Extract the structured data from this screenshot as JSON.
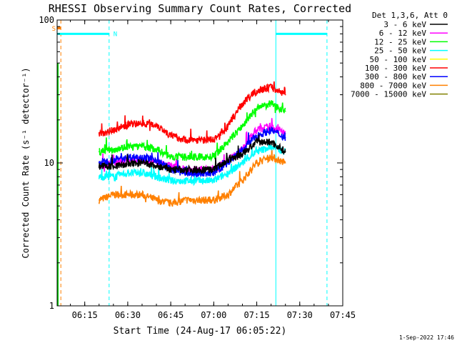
{
  "chart_data": {
    "type": "line",
    "title": "RHESSI Observing Summary Count Rates, Corrected",
    "xlabel": "Start Time (24-Aug-17 06:05:22)",
    "ylabel": "Corrected Count Rate (s⁻¹ detector⁻¹)",
    "y_scale": "log",
    "ylim": [
      1,
      100
    ],
    "y_ticks": [
      {
        "value": 1,
        "label": "1"
      },
      {
        "value": 10,
        "label": "10"
      },
      {
        "value": 100,
        "label": "100"
      }
    ],
    "xlim": [
      "06:05:22",
      "07:45:00"
    ],
    "x_ticks": [
      "06:15",
      "06:30",
      "06:45",
      "07:00",
      "07:15",
      "07:30",
      "07:45"
    ],
    "legend_title": "Det 1,3,6, Att 0",
    "legend_position": "top-right, outside plot",
    "timestamp": "1-Sep-2022 17:46",
    "series": [
      {
        "name": "3 - 6 keV",
        "color": "#000000",
        "x": [
          "06:20",
          "06:25",
          "06:30",
          "06:35",
          "06:40",
          "06:45",
          "06:50",
          "06:55",
          "07:00",
          "07:05",
          "07:10",
          "07:15",
          "07:20",
          "07:25"
        ],
        "values": [
          9.5,
          9.5,
          9.8,
          10.0,
          9.5,
          9.0,
          9.0,
          9.0,
          9.0,
          10.5,
          11.5,
          14.0,
          14.0,
          12.0
        ]
      },
      {
        "name": "6 - 12 keV",
        "color": "#ff00ff",
        "x": [
          "06:20",
          "06:25",
          "06:30",
          "06:35",
          "06:40",
          "06:45",
          "06:50",
          "06:55",
          "07:00",
          "07:05",
          "07:10",
          "07:15",
          "07:20",
          "07:25"
        ],
        "values": [
          9.5,
          10.0,
          10.5,
          10.5,
          10.0,
          9.5,
          9.0,
          9.0,
          9.0,
          10.5,
          12.5,
          17.0,
          18.0,
          16.0
        ]
      },
      {
        "name": "12 - 25 keV",
        "color": "#00ff00",
        "x": [
          "06:20",
          "06:25",
          "06:30",
          "06:35",
          "06:40",
          "06:45",
          "06:50",
          "06:55",
          "07:00",
          "07:05",
          "07:10",
          "07:15",
          "07:20",
          "07:25"
        ],
        "values": [
          12.0,
          12.5,
          13.0,
          13.0,
          12.5,
          11.0,
          11.0,
          11.0,
          11.0,
          14.0,
          18.0,
          24.0,
          26.0,
          23.0
        ]
      },
      {
        "name": "25 - 50 keV",
        "color": "#00ffff",
        "x": [
          "06:20",
          "06:25",
          "06:30",
          "06:35",
          "06:40",
          "06:45",
          "06:50",
          "06:55",
          "07:00",
          "07:05",
          "07:10",
          "07:15",
          "07:20",
          "07:25"
        ],
        "values": [
          8.0,
          8.0,
          8.5,
          8.5,
          8.0,
          7.5,
          7.5,
          7.5,
          7.5,
          8.5,
          10.0,
          12.0,
          13.0,
          12.0
        ]
      },
      {
        "name": "50 - 100 keV",
        "color": "#ffff00",
        "x": [],
        "values": []
      },
      {
        "name": "100 - 300 keV",
        "color": "#ff0000",
        "x": [
          "06:20",
          "06:25",
          "06:30",
          "06:35",
          "06:40",
          "06:45",
          "06:50",
          "06:55",
          "07:00",
          "07:05",
          "07:10",
          "07:15",
          "07:20",
          "07:25"
        ],
        "values": [
          16.0,
          17.0,
          18.5,
          19.0,
          18.5,
          15.5,
          14.5,
          14.5,
          14.5,
          18.0,
          26.0,
          32.0,
          34.0,
          30.0
        ]
      },
      {
        "name": "300 - 800 keV",
        "color": "#0000ff",
        "x": [
          "06:20",
          "06:25",
          "06:30",
          "06:35",
          "06:40",
          "06:45",
          "06:50",
          "06:55",
          "07:00",
          "07:05",
          "07:10",
          "07:15",
          "07:20",
          "07:25"
        ],
        "values": [
          10.0,
          10.5,
          11.0,
          11.0,
          10.5,
          9.0,
          8.5,
          8.5,
          8.5,
          10.0,
          12.5,
          15.5,
          17.0,
          15.0
        ]
      },
      {
        "name": "800 - 7000 keV",
        "color": "#ff8000",
        "x": [
          "06:20",
          "06:25",
          "06:30",
          "06:35",
          "06:40",
          "06:45",
          "06:50",
          "06:55",
          "07:00",
          "07:05",
          "07:10",
          "07:15",
          "07:20",
          "07:25"
        ],
        "values": [
          5.5,
          6.0,
          6.0,
          6.0,
          5.5,
          5.2,
          5.5,
          5.5,
          5.5,
          6.0,
          7.5,
          10.0,
          11.0,
          10.0
        ]
      },
      {
        "name": "7000 - 15000 keV",
        "color": "#808000",
        "x": [],
        "values": []
      }
    ],
    "annotations": [
      {
        "type": "vline",
        "x": "06:06:40",
        "color": "#ff8000",
        "style": "dashed"
      },
      {
        "type": "vline",
        "x": "06:23:30",
        "color": "#00ffff",
        "style": "dashed"
      },
      {
        "type": "vline",
        "x": "07:21:40",
        "color": "#00ffff",
        "style": "solid"
      },
      {
        "type": "vline",
        "x": "07:39:30",
        "color": "#00ffff",
        "style": "dashed"
      },
      {
        "type": "segment",
        "x": [
          "06:05:22",
          "06:23:30"
        ],
        "y": 80,
        "color": "#00ffff",
        "label": "N"
      },
      {
        "type": "segment",
        "x": [
          "07:21:40",
          "07:39:30"
        ],
        "y": 80,
        "color": "#00ffff",
        "label": ""
      },
      {
        "type": "marker",
        "x": "06:05:22",
        "y": 88,
        "color": "#ff8000",
        "label": "S"
      }
    ]
  }
}
